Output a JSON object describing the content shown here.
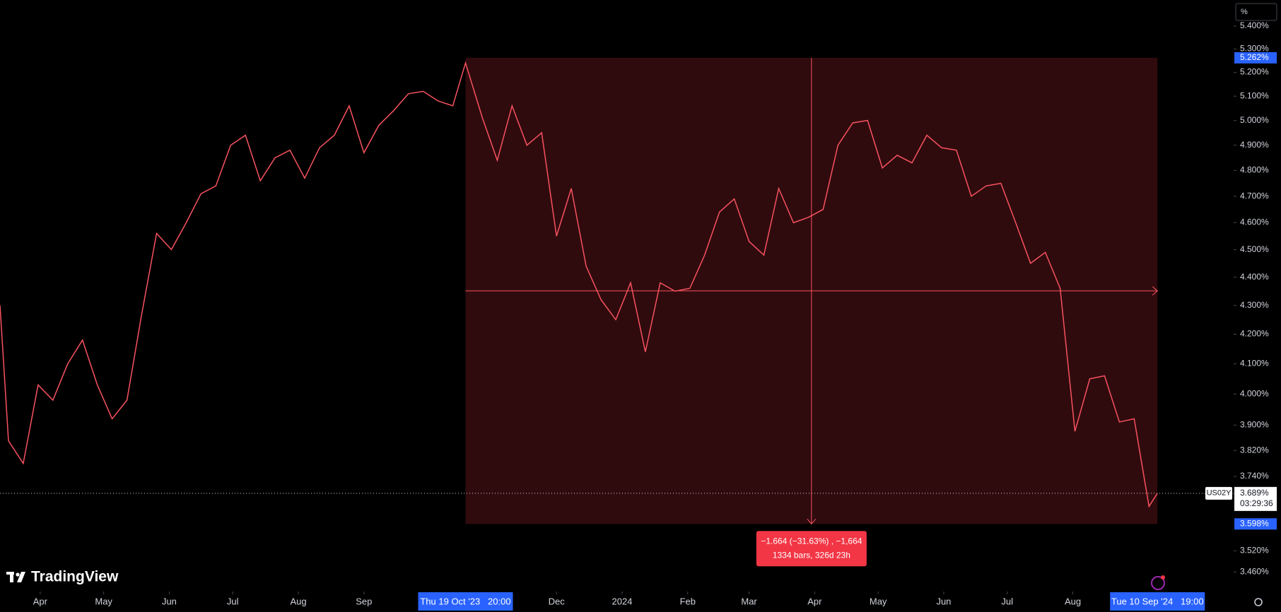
{
  "chart_data": {
    "type": "line",
    "log": true,
    "grid": false,
    "scale_button": "%",
    "watermark": "TradingView",
    "series": [
      {
        "name": "US02Y",
        "color": "#f7525f",
        "values": [
          4.3,
          3.85,
          3.78,
          4.03,
          3.98,
          4.1,
          4.18,
          4.03,
          3.92,
          3.98,
          4.27,
          4.56,
          4.5,
          4.6,
          4.71,
          4.74,
          4.9,
          4.94,
          4.76,
          4.85,
          4.88,
          4.77,
          4.89,
          4.94,
          5.06,
          4.87,
          4.98,
          5.04,
          5.11,
          5.12,
          5.08,
          5.06,
          5.24,
          5.01,
          4.84,
          5.06,
          4.9,
          4.95,
          4.55,
          4.73,
          4.44,
          4.32,
          4.25,
          4.38,
          4.14,
          4.38,
          4.35,
          4.36,
          4.48,
          4.64,
          4.69,
          4.53,
          4.48,
          4.73,
          4.6,
          4.62,
          4.65,
          4.9,
          4.99,
          5.0,
          4.81,
          4.86,
          4.83,
          4.94,
          4.89,
          4.88,
          4.7,
          4.74,
          4.75,
          4.6,
          4.45,
          4.49,
          4.36,
          3.88,
          4.05,
          4.06,
          3.91,
          3.92,
          3.65,
          3.689
        ]
      }
    ],
    "x": [
      "2023-03-13",
      "2023-03-17",
      "2023-03-24",
      "2023-03-31",
      "2023-04-07",
      "2023-04-14",
      "2023-04-21",
      "2023-04-28",
      "2023-05-05",
      "2023-05-12",
      "2023-05-19",
      "2023-05-26",
      "2023-06-02",
      "2023-06-09",
      "2023-06-16",
      "2023-06-23",
      "2023-06-30",
      "2023-07-07",
      "2023-07-14",
      "2023-07-21",
      "2023-07-28",
      "2023-08-04",
      "2023-08-11",
      "2023-08-18",
      "2023-08-25",
      "2023-09-01",
      "2023-09-08",
      "2023-09-15",
      "2023-09-22",
      "2023-09-29",
      "2023-10-06",
      "2023-10-13",
      "2023-10-19",
      "2023-10-27",
      "2023-11-03",
      "2023-11-10",
      "2023-11-17",
      "2023-11-24",
      "2023-12-01",
      "2023-12-08",
      "2023-12-15",
      "2023-12-22",
      "2023-12-29",
      "2024-01-05",
      "2024-01-12",
      "2024-01-19",
      "2024-01-26",
      "2024-02-02",
      "2024-02-09",
      "2024-02-16",
      "2024-02-23",
      "2024-03-01",
      "2024-03-08",
      "2024-03-15",
      "2024-03-22",
      "2024-03-29",
      "2024-04-05",
      "2024-04-12",
      "2024-04-19",
      "2024-04-26",
      "2024-05-03",
      "2024-05-10",
      "2024-05-17",
      "2024-05-24",
      "2024-05-31",
      "2024-06-07",
      "2024-06-14",
      "2024-06-21",
      "2024-06-28",
      "2024-07-05",
      "2024-07-12",
      "2024-07-19",
      "2024-07-26",
      "2024-08-02",
      "2024-08-09",
      "2024-08-16",
      "2024-08-23",
      "2024-08-30",
      "2024-09-06",
      "2024-09-10"
    ],
    "xlim": [
      "2023-03-13",
      "2024-10-16"
    ],
    "xticks": [
      {
        "value": "2023-04-01",
        "label": "Apr"
      },
      {
        "value": "2023-05-01",
        "label": "May"
      },
      {
        "value": "2023-06-01",
        "label": "Jun"
      },
      {
        "value": "2023-07-01",
        "label": "Jul"
      },
      {
        "value": "2023-08-01",
        "label": "Aug"
      },
      {
        "value": "2023-09-01",
        "label": "Sep"
      },
      {
        "value": "2023-12-01",
        "label": "Dec"
      },
      {
        "value": "2024-01-01",
        "label": "2024"
      },
      {
        "value": "2024-02-01",
        "label": "Feb"
      },
      {
        "value": "2024-03-01",
        "label": "Mar"
      },
      {
        "value": "2024-04-01",
        "label": "Apr"
      },
      {
        "value": "2024-05-01",
        "label": "May"
      },
      {
        "value": "2024-06-01",
        "label": "Jun"
      },
      {
        "value": "2024-07-01",
        "label": "Jul"
      },
      {
        "value": "2024-08-01",
        "label": "Aug"
      }
    ],
    "ylim": [
      3.405,
      5.516
    ],
    "yticks": [
      {
        "value": 5.4,
        "label": "5.400%"
      },
      {
        "value": 5.3,
        "label": "5.300%"
      },
      {
        "value": 5.2,
        "label": "5.200%"
      },
      {
        "value": 5.1,
        "label": "5.100%"
      },
      {
        "value": 5.0,
        "label": "5.000%"
      },
      {
        "value": 4.9,
        "label": "4.900%"
      },
      {
        "value": 4.8,
        "label": "4.800%"
      },
      {
        "value": 4.7,
        "label": "4.700%"
      },
      {
        "value": 4.6,
        "label": "4.600%"
      },
      {
        "value": 4.5,
        "label": "4.500%"
      },
      {
        "value": 4.4,
        "label": "4.400%"
      },
      {
        "value": 4.3,
        "label": "4.300%"
      },
      {
        "value": 4.2,
        "label": "4.200%"
      },
      {
        "value": 4.1,
        "label": "4.100%"
      },
      {
        "value": 4.0,
        "label": "4.000%"
      },
      {
        "value": 3.9,
        "label": "3.900%"
      },
      {
        "value": 3.82,
        "label": "3.820%"
      },
      {
        "value": 3.74,
        "label": "3.740%"
      },
      {
        "value": 3.52,
        "label": "3.520%"
      },
      {
        "value": 3.46,
        "label": "3.460%"
      }
    ],
    "last_price": {
      "value": 3.689,
      "label": "3.689%"
    },
    "countdown": "03:29:36",
    "measurement": {
      "start": "2023-10-19",
      "end": "2024-09-10",
      "start_label": "Thu 19 Oct '23   20:00",
      "end_label": "Tue 10 Sep '24   19:00",
      "high": {
        "value": 5.262,
        "label": "5.262%"
      },
      "low": {
        "value": 3.598,
        "label": "3.598%"
      },
      "text": [
        "−1.664 (−31.63%) , −1,664",
        "1334 bars, 326d 23h"
      ]
    }
  }
}
